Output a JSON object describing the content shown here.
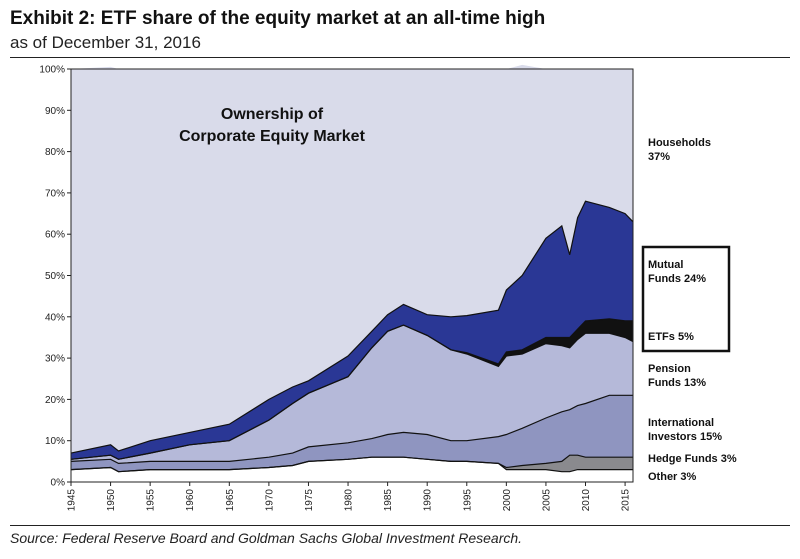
{
  "title": "Exhibit 2: ETF share of the equity market at an all-time high",
  "subtitle": "as of December 31, 2016",
  "source": "Source: Federal Reserve Board and Goldman Sachs Global Investment Research.",
  "chart_data": {
    "type": "area",
    "stacked": true,
    "title_line1": "Ownership of",
    "title_line2": "Corporate Equity Market",
    "x_ticks": [
      1945,
      1950,
      1955,
      1960,
      1965,
      1970,
      1975,
      1980,
      1985,
      1990,
      1995,
      2000,
      2005,
      2010,
      2015
    ],
    "y_ticks": [
      "0%",
      "10%",
      "20%",
      "30%",
      "40%",
      "50%",
      "60%",
      "70%",
      "80%",
      "90%",
      "100%"
    ],
    "ylim": [
      0,
      100
    ],
    "xlim": [
      1945,
      2016
    ],
    "plot_bg": "#d9dbea",
    "x": [
      1945,
      1950,
      1951,
      1955,
      1960,
      1965,
      1970,
      1973,
      1975,
      1980,
      1983,
      1985,
      1987,
      1990,
      1993,
      1995,
      1999,
      2000,
      2002,
      2005,
      2007,
      2008,
      2009,
      2010,
      2013,
      2015,
      2016
    ],
    "series": [
      {
        "name": "Other 3%",
        "color": "#ffffff",
        "values": [
          3,
          3.5,
          2.5,
          3,
          3,
          3,
          3.5,
          4,
          5,
          5.5,
          6,
          6,
          6,
          5.5,
          5,
          5,
          4.5,
          3,
          3,
          3,
          2.5,
          2.5,
          3,
          3,
          3,
          3,
          3
        ]
      },
      {
        "name": "Hedge Funds 3%",
        "color": "#8a8a8e",
        "values": [
          0,
          0,
          0,
          0,
          0,
          0,
          0,
          0,
          0,
          0,
          0,
          0,
          0,
          0,
          0,
          0,
          0,
          0.5,
          1,
          1.5,
          2.5,
          4,
          3.5,
          3,
          3,
          3,
          3
        ]
      },
      {
        "name": "International Investors 15%",
        "color": "#8f95c0",
        "values": [
          2,
          2,
          2,
          2,
          2,
          2,
          2.5,
          3,
          3.5,
          4,
          4.5,
          5.5,
          6,
          6,
          5,
          5,
          6.5,
          8,
          9,
          11,
          12,
          11,
          12,
          13,
          15,
          15,
          15
        ]
      },
      {
        "name": "Pension Funds 13%",
        "color": "#b5b9d9",
        "values": [
          0.5,
          1,
          1,
          2,
          4,
          5,
          9,
          12,
          13,
          16,
          22,
          25,
          26,
          24,
          22,
          21,
          17,
          19,
          18,
          18,
          16,
          15,
          16,
          17,
          15,
          14,
          13
        ]
      },
      {
        "name": "ETFs 5%",
        "color": "#111111",
        "values": [
          0,
          0,
          0,
          0,
          0,
          0,
          0,
          0,
          0,
          0,
          0,
          0,
          0,
          0,
          0,
          0.3,
          0.6,
          1,
          1,
          1.5,
          2,
          2.5,
          2.5,
          3,
          3.5,
          4,
          5
        ]
      },
      {
        "name": "Mutual Funds 24%",
        "color": "#2a3795",
        "values": [
          1.5,
          2.5,
          2,
          3,
          3,
          4,
          5,
          4,
          3,
          5,
          4,
          4,
          5,
          5,
          8,
          9,
          13,
          15,
          18,
          24,
          27,
          20,
          27,
          29,
          27,
          26,
          24
        ]
      },
      {
        "name": "Households 37%",
        "color": "#d9dbea",
        "values": [
          93,
          91.5,
          92.5,
          90,
          88,
          86,
          80,
          77,
          75.5,
          69.5,
          63.5,
          59.5,
          57,
          59.5,
          60,
          59.7,
          58.4,
          53.5,
          51,
          41,
          38,
          45,
          36,
          32,
          33.5,
          35,
          37
        ]
      }
    ],
    "labels": [
      {
        "lines": [
          "Households",
          "37%"
        ],
        "boxed": false
      },
      {
        "lines": [
          "Mutual",
          "Funds 24%"
        ],
        "boxed": true
      },
      {
        "lines": [
          "ETFs 5%"
        ],
        "boxed": true
      },
      {
        "lines": [
          "Pension",
          "Funds 13%"
        ],
        "boxed": false
      },
      {
        "lines": [
          "International",
          "Investors 15%"
        ],
        "boxed": false
      },
      {
        "lines": [
          "Hedge Funds 3%"
        ],
        "boxed": false
      },
      {
        "lines": [
          "Other 3%"
        ],
        "boxed": false
      }
    ]
  }
}
